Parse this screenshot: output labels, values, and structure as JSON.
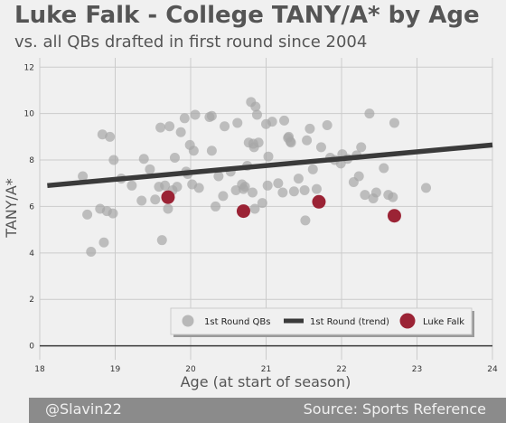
{
  "title": "Luke Falk - College TANY/A* by Age",
  "subtitle": "vs. all QBs drafted in first round since 2004",
  "footer": {
    "left": "@Slavin22",
    "right": "Source: Sports Reference"
  },
  "chart_data": {
    "type": "scatter",
    "xlabel": "Age (at start of season)",
    "ylabel": "TANY/A*",
    "xlim": [
      18,
      24
    ],
    "ylim": [
      -0.6,
      12.4
    ],
    "xticks": [
      18,
      19,
      20,
      21,
      22,
      23,
      24
    ],
    "yticks": [
      0,
      2,
      4,
      6,
      8,
      10,
      12
    ],
    "grid": true,
    "legend_position": "bottom-right",
    "colors": {
      "first_round": "#a6a6a6",
      "trend": "#3a3a3a",
      "luke_falk": "#9b2335",
      "text": "#555555"
    },
    "series": [
      {
        "name": "1st Round QBs",
        "kind": "scatter",
        "x": [
          18.57,
          18.63,
          18.68,
          18.8,
          18.85,
          18.89,
          18.97,
          18.83,
          18.93,
          18.98,
          19.08,
          19.22,
          19.35,
          19.38,
          19.46,
          19.53,
          19.58,
          19.62,
          19.66,
          19.7,
          19.72,
          19.76,
          19.79,
          19.82,
          19.87,
          19.92,
          19.94,
          19.96,
          19.99,
          20.02,
          20.04,
          20.06,
          20.11,
          20.25,
          20.28,
          20.33,
          20.37,
          20.43,
          20.45,
          20.53,
          20.6,
          20.62,
          20.68,
          20.72,
          20.75,
          20.77,
          20.8,
          20.82,
          20.84,
          20.86,
          20.88,
          20.9,
          20.95,
          21.0,
          21.03,
          21.08,
          21.16,
          21.22,
          21.24,
          21.29,
          21.33,
          21.37,
          21.43,
          21.51,
          21.54,
          21.58,
          21.62,
          21.67,
          21.73,
          21.81,
          21.85,
          21.91,
          21.99,
          22.01,
          22.08,
          22.16,
          22.23,
          22.26,
          22.31,
          22.37,
          22.42,
          22.46,
          22.56,
          22.62,
          22.68,
          22.7,
          23.12,
          21.52,
          19.6,
          20.28,
          20.7,
          20.83,
          20.85,
          21.02,
          21.3,
          22.2,
          21.32
        ],
        "y": [
          7.3,
          5.65,
          4.05,
          5.9,
          4.45,
          5.8,
          5.7,
          9.1,
          9.0,
          8.0,
          7.2,
          6.9,
          6.25,
          8.05,
          7.6,
          6.3,
          6.85,
          4.55,
          6.9,
          5.9,
          9.45,
          6.7,
          8.1,
          6.85,
          9.2,
          9.8,
          7.5,
          7.4,
          8.65,
          6.95,
          8.4,
          9.95,
          6.8,
          9.85,
          8.4,
          6.0,
          7.3,
          6.45,
          9.45,
          7.5,
          6.7,
          9.6,
          6.95,
          6.85,
          7.75,
          8.75,
          10.5,
          6.6,
          8.55,
          10.3,
          9.95,
          8.75,
          6.15,
          9.55,
          8.15,
          9.65,
          7.0,
          6.6,
          9.7,
          8.95,
          8.75,
          6.65,
          7.2,
          6.7,
          8.85,
          9.35,
          7.6,
          6.75,
          8.55,
          9.5,
          8.1,
          8.0,
          7.85,
          8.25,
          8.05,
          7.05,
          7.3,
          8.55,
          6.5,
          10.0,
          6.35,
          6.6,
          7.65,
          6.5,
          6.4,
          9.6,
          6.8,
          5.4,
          9.4,
          9.9,
          6.75,
          8.7,
          5.9,
          6.9,
          9.0,
          8.2,
          8.8
        ]
      },
      {
        "name": "1st Round (trend)",
        "kind": "line",
        "x": [
          18.1,
          24.0
        ],
        "y": [
          6.9,
          8.65
        ]
      },
      {
        "name": "Luke Falk",
        "kind": "scatter",
        "x": [
          19.7,
          20.7,
          21.7,
          22.7
        ],
        "y": [
          6.4,
          5.8,
          6.2,
          5.6
        ]
      }
    ]
  }
}
